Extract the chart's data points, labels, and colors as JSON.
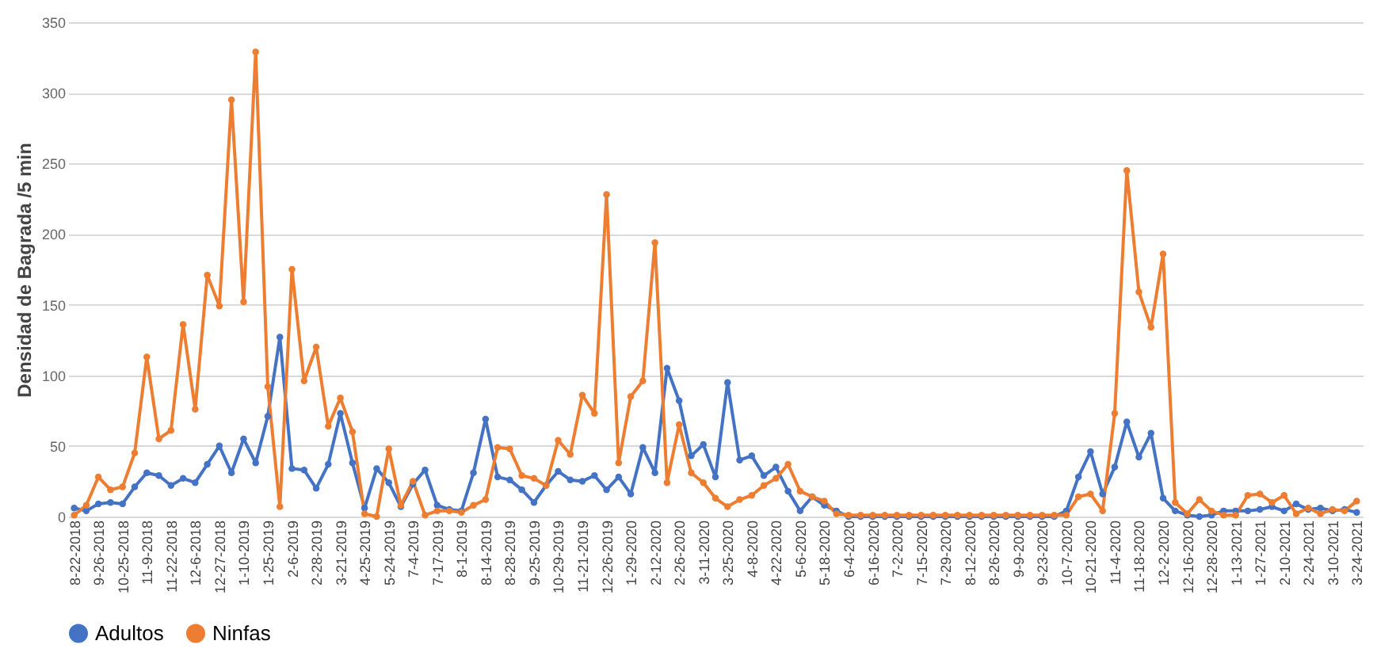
{
  "chart_data": {
    "type": "line",
    "ylabel": "Densidad de Bagrada /5 min",
    "categories": [
      "8-22-2018",
      null,
      "9-26-2018",
      null,
      "10-25-2018",
      null,
      "11-9-2018",
      null,
      "11-22-2018",
      null,
      "12-6-2018",
      null,
      "12-27-2018",
      null,
      "1-10-2019",
      null,
      "1-25-2019",
      null,
      "2-6-2019",
      null,
      "2-28-2019",
      null,
      "3-21-2019",
      null,
      "4-25-2019",
      null,
      "5-24-2019",
      null,
      "7-4-2019",
      null,
      "7-17-2019",
      null,
      "8-1-2019",
      null,
      "8-14-2019",
      null,
      "8-28-2019",
      null,
      "9-25-2019",
      null,
      "10-29-2019",
      null,
      "11-21-2019",
      null,
      "12-26-2019",
      null,
      "1-29-2020",
      null,
      "2-12-2020",
      null,
      "2-26-2020",
      null,
      "3-11-2020",
      null,
      "3-25-2020",
      null,
      "4-8-2020",
      null,
      "4-22-2020",
      null,
      "5-6-2020",
      null,
      "5-18-2020",
      null,
      "6-4-2020",
      null,
      "6-16-2020",
      null,
      "7-2-2020",
      null,
      "7-15-2020",
      null,
      "7-29-2020",
      null,
      "8-12-2020",
      null,
      "8-26-2020",
      null,
      "9-9-2020",
      null,
      "9-23-2020",
      null,
      "10-7-2020",
      null,
      "10-21-2020",
      null,
      "11-4-2020",
      null,
      "11-18-2020",
      null,
      "12-2-2020",
      null,
      "12-16-2020",
      null,
      "12-28-2020",
      null,
      "1-13-2021",
      null,
      "1-27-2021",
      null,
      "2-10-2021",
      null,
      "2-24-2021",
      null,
      "3-10-2021",
      null,
      "3-24-2021"
    ],
    "series": [
      {
        "name": "Adultos",
        "color": "#4472c4",
        "values": [
          6,
          4,
          9,
          10,
          9,
          21,
          31,
          29,
          22,
          27,
          24,
          37,
          50,
          31,
          55,
          38,
          71,
          127,
          34,
          33,
          20,
          37,
          73,
          38,
          6,
          34,
          24,
          7,
          23,
          33,
          8,
          5,
          4,
          31,
          69,
          28,
          26,
          19,
          10,
          22,
          32,
          26,
          25,
          29,
          19,
          28,
          16,
          49,
          31,
          105,
          82,
          43,
          51,
          28,
          95,
          40,
          43,
          29,
          35,
          18,
          4,
          14,
          8,
          4,
          0,
          0,
          0,
          0,
          0,
          0,
          0,
          0,
          0,
          0,
          0,
          0,
          0,
          0,
          0,
          0,
          0,
          0,
          4,
          28,
          46,
          16,
          35,
          67,
          42,
          59,
          13,
          4,
          1,
          0,
          1,
          4,
          4,
          4,
          5,
          7,
          4,
          9,
          5,
          6,
          4,
          5,
          3
        ]
      },
      {
        "name": "Ninfas",
        "color": "#ed7d31",
        "values": [
          1,
          8,
          28,
          19,
          21,
          45,
          113,
          55,
          61,
          136,
          76,
          171,
          149,
          295,
          152,
          329,
          92,
          7,
          175,
          96,
          120,
          64,
          84,
          60,
          2,
          0,
          48,
          8,
          25,
          1,
          4,
          4,
          3,
          8,
          12,
          49,
          48,
          29,
          27,
          22,
          54,
          44,
          86,
          73,
          228,
          38,
          85,
          96,
          194,
          24,
          65,
          31,
          24,
          13,
          7,
          12,
          15,
          22,
          27,
          37,
          18,
          14,
          11,
          2,
          1,
          1,
          1,
          1,
          1,
          1,
          1,
          1,
          1,
          1,
          1,
          1,
          1,
          1,
          1,
          1,
          1,
          1,
          1,
          14,
          16,
          4,
          73,
          245,
          159,
          134,
          186,
          10,
          2,
          12,
          4,
          1,
          1,
          15,
          16,
          10,
          15,
          2,
          6,
          2,
          5,
          4,
          11
        ]
      }
    ],
    "ylim": [
      0,
      350
    ],
    "yticks": [
      0,
      50,
      100,
      150,
      200,
      250,
      300,
      350
    ],
    "grid": "y",
    "legend": "bottom",
    "marker": "circle",
    "line_style": "solid"
  }
}
